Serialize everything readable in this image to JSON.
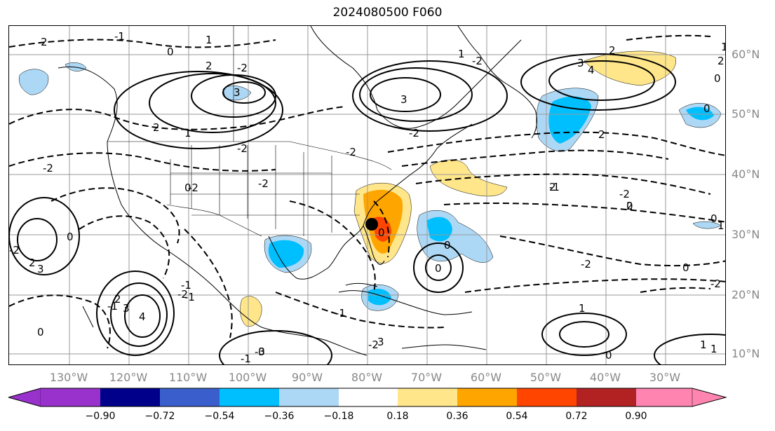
{
  "title": "2024080500 F060",
  "lat_labels": [
    {
      "text": "60°N",
      "key": "lat60"
    },
    {
      "text": "50°N",
      "key": "lat50"
    },
    {
      "text": "40°N",
      "key": "lat40"
    },
    {
      "text": "30°N",
      "key": "lat30"
    },
    {
      "text": "20°N",
      "key": "lat20"
    },
    {
      "text": "10°N",
      "key": "lat10"
    }
  ],
  "lon_labels": [
    "130°W",
    "120°W",
    "110°W",
    "100°W",
    "90°W",
    "80°W",
    "70°W",
    "60°W",
    "50°W",
    "40°W",
    "30°W"
  ],
  "contour_labels": [
    "2",
    "-1",
    "0",
    "1",
    "2",
    "-2",
    "2",
    "1",
    "-2",
    "0",
    "3",
    "2",
    "-2",
    "-2",
    "3",
    "-2",
    "1",
    "-2",
    "3",
    "4",
    "2",
    "0",
    "-1",
    "-2",
    "2",
    "0",
    "-2",
    "-2",
    "0",
    "-2",
    "2",
    "3",
    "0",
    "0",
    "-2",
    "0",
    "0",
    "-2",
    "2",
    "-1",
    "-1",
    "0",
    "2",
    "3",
    "-1",
    "-1",
    "-3",
    "4",
    "3",
    "0",
    "0",
    "-1",
    "1",
    "-2",
    "1",
    "0",
    "-2",
    "1",
    "1",
    "2",
    "0",
    "1"
  ],
  "colorbar": {
    "ticks": [
      "−0.90",
      "−0.72",
      "−0.54",
      "−0.36",
      "−0.18",
      "0.18",
      "0.36",
      "0.54",
      "0.72",
      "0.90"
    ],
    "colors": [
      "#9932cc",
      "#00008b",
      "#3a5fcd",
      "#00bfff",
      "#add8f5",
      "#ffffff",
      "#ffe68a",
      "#ffa500",
      "#ff4500",
      "#b22222",
      "#ff85b0"
    ]
  },
  "marker": {
    "label": "storm-center"
  }
}
